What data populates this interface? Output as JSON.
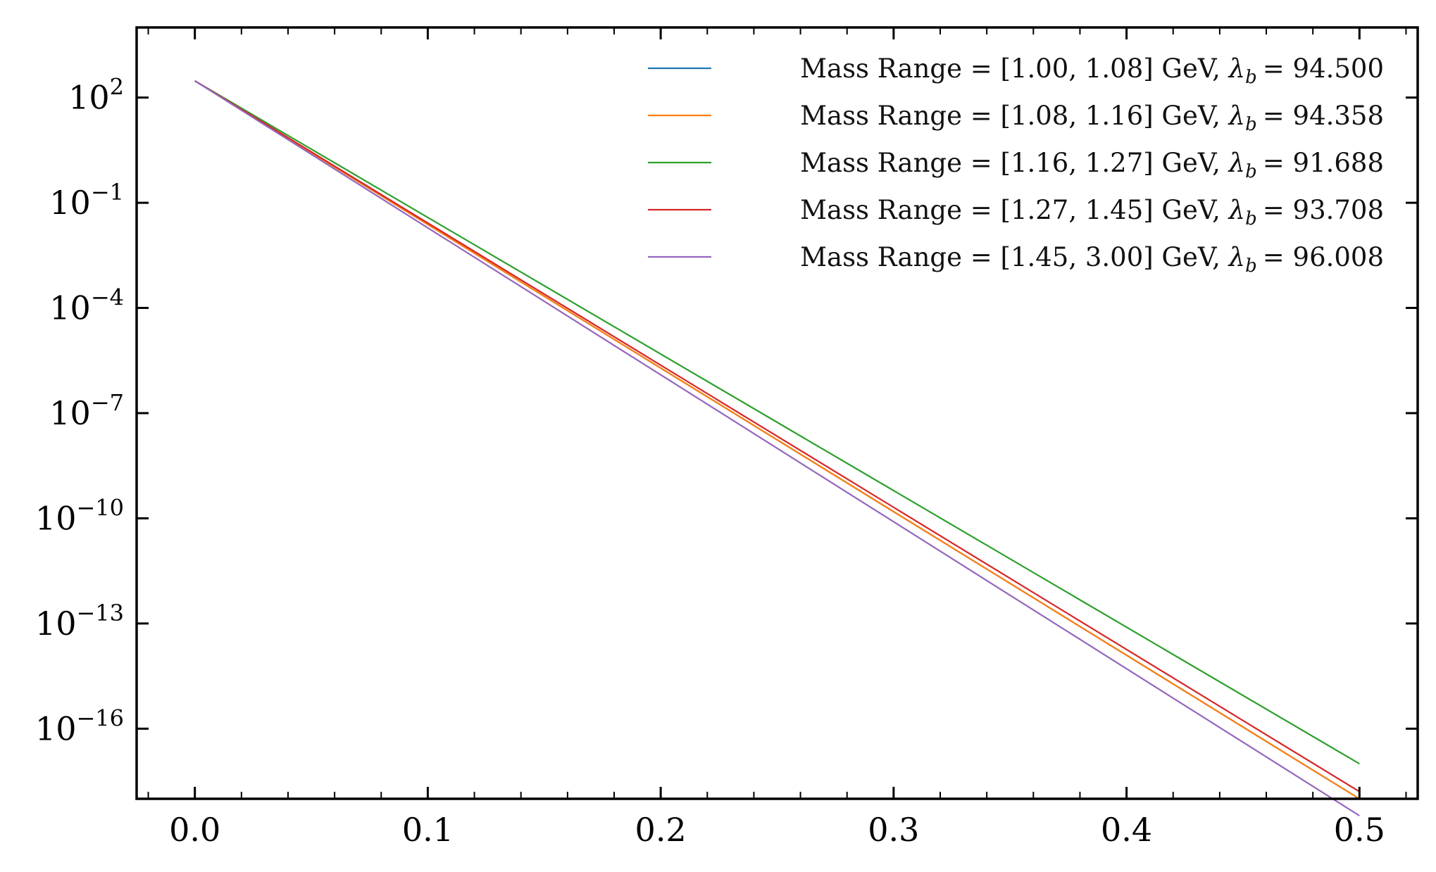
{
  "chart_data": {
    "type": "line",
    "x_scale": "linear",
    "y_scale": "log",
    "xlim": [
      -0.025,
      0.525
    ],
    "ylim": [
      1e-18,
      10000.0
    ],
    "x_ticks": [
      0.0,
      0.1,
      0.2,
      0.3,
      0.4,
      0.5
    ],
    "x_tick_labels": [
      "0.0",
      "0.1",
      "0.2",
      "0.3",
      "0.4",
      "0.5"
    ],
    "x_minor_step": 0.02,
    "y_ticks": [
      {
        "value": 100.0,
        "base": "10",
        "exp": "2"
      },
      {
        "value": 0.1,
        "base": "10",
        "exp": "−1"
      },
      {
        "value": 0.0001,
        "base": "10",
        "exp": "−4"
      },
      {
        "value": 1e-07,
        "base": "10",
        "exp": "−7"
      },
      {
        "value": 1e-10,
        "base": "10",
        "exp": "−10"
      },
      {
        "value": 1e-13,
        "base": "10",
        "exp": "−13"
      },
      {
        "value": 1e-16,
        "base": "10",
        "exp": "−16"
      }
    ],
    "grid": false,
    "legend_position": "top-right",
    "xlabel": "",
    "ylabel": "",
    "title": "",
    "series": [
      {
        "name": "Mass Range = [1.00, 1.08] GeV, λb = 94.500",
        "label_main": "Mass Range = [1.00, 1.08] GeV, ",
        "lambda_value": "= 94.500",
        "color": "#1f77b4",
        "x": [
          0.0,
          0.5
        ],
        "y": [
          300,
          1e-18
        ]
      },
      {
        "name": "Mass Range = [1.08, 1.16] GeV, λb = 94.358",
        "label_main": "Mass Range = [1.08, 1.16] GeV, ",
        "lambda_value": "= 94.358",
        "color": "#ff7f0e",
        "x": [
          0.0,
          0.5
        ],
        "y": [
          300,
          1e-18
        ]
      },
      {
        "name": "Mass Range = [1.16, 1.27] GeV, λb = 91.688",
        "label_main": "Mass Range = [1.16, 1.27] GeV, ",
        "lambda_value": "= 91.688",
        "color": "#2ca02c",
        "x": [
          0.0,
          0.5
        ],
        "y": [
          300,
          1e-17
        ]
      },
      {
        "name": "Mass Range = [1.27, 1.45] GeV, λb = 93.708",
        "label_main": "Mass Range = [1.27, 1.45] GeV, ",
        "lambda_value": "= 93.708",
        "color": "#d62728",
        "x": [
          0.0,
          0.5
        ],
        "y": [
          300,
          1.6e-18
        ]
      },
      {
        "name": "Mass Range = [1.45, 3.00] GeV, λb = 96.008",
        "label_main": "Mass Range = [1.45, 3.00] GeV, ",
        "lambda_value": "= 96.008",
        "color": "#9467bd",
        "x": [
          0.0,
          0.5
        ],
        "y": [
          300,
          3.3e-19
        ]
      }
    ],
    "lambda_symbol": "λ",
    "lambda_subscript": "b"
  }
}
